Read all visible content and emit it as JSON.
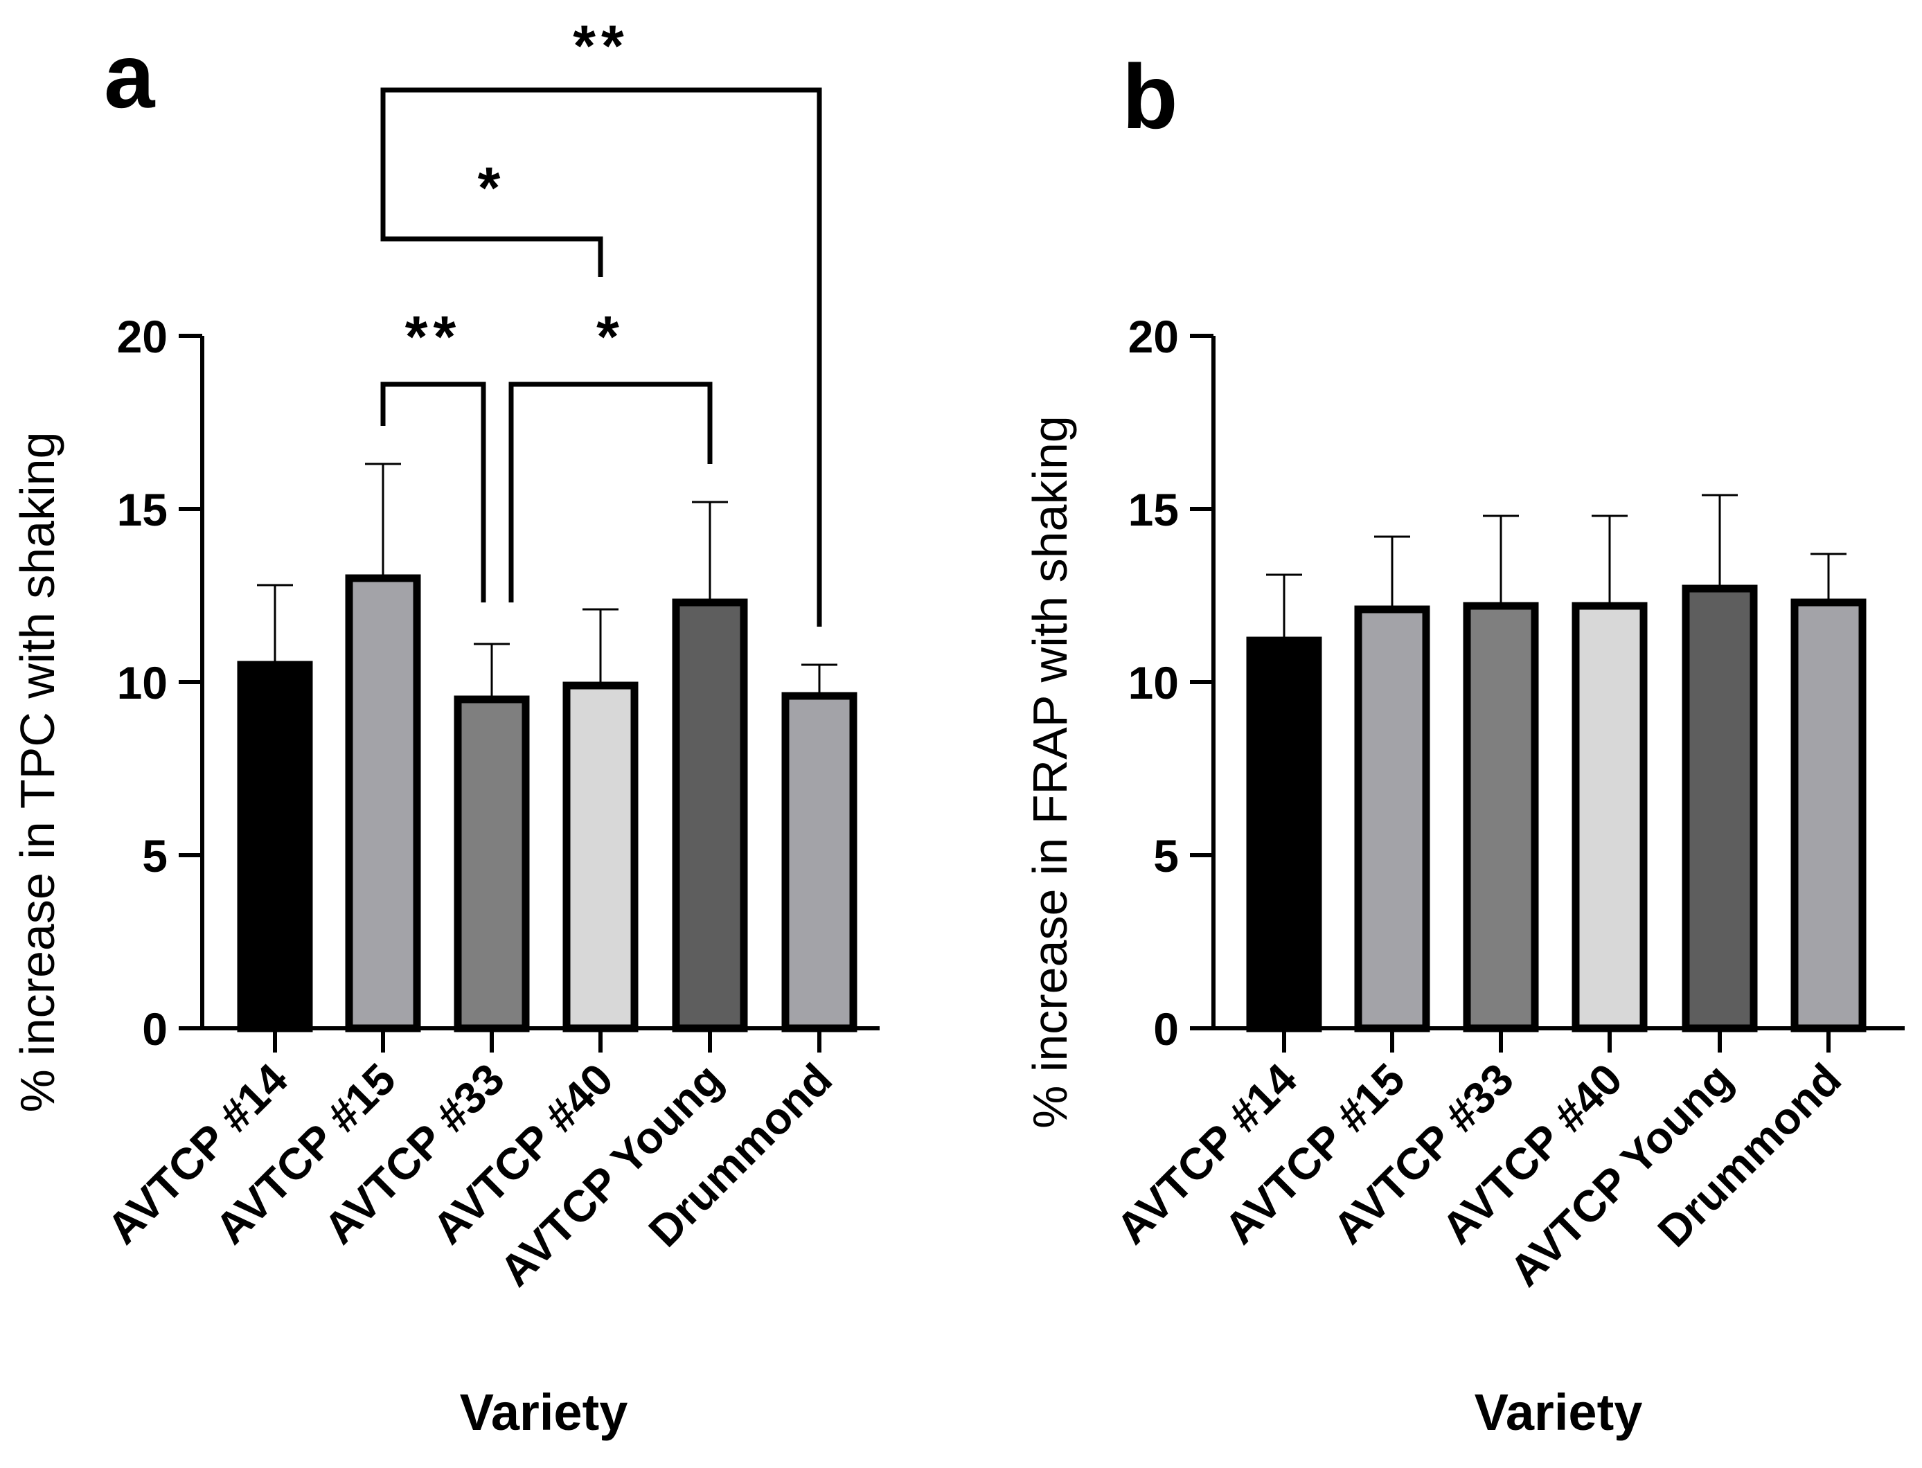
{
  "chart_data": [
    {
      "panel_label": "a",
      "type": "bar",
      "categories": [
        "AVTCP #14",
        "AVTCP #15",
        "AVTCP #33",
        "AVTCP #40",
        "AVTCP Young",
        "Drummond"
      ],
      "values": [
        10.5,
        13.0,
        9.5,
        9.9,
        12.3,
        9.6
      ],
      "errors": [
        2.3,
        3.3,
        1.6,
        2.2,
        2.9,
        0.9
      ],
      "colors": [
        "#000000",
        "#a3a3a8",
        "#7f7f7f",
        "#d8d8d8",
        "#5e5e5e",
        "#a3a3a8"
      ],
      "ylabel": "% increase in TPC with shaking",
      "xlabel": "Variety",
      "ylim": [
        0,
        20
      ],
      "yticks": [
        0,
        5,
        10,
        15,
        20
      ],
      "significance": [
        {
          "from": 1,
          "to": 5,
          "label": "**"
        },
        {
          "from": 1,
          "to": 3,
          "label": "*"
        },
        {
          "from": 1,
          "to": 2,
          "label": "**"
        },
        {
          "from": 2,
          "to": 4,
          "label": "*"
        }
      ]
    },
    {
      "panel_label": "b",
      "type": "bar",
      "categories": [
        "AVTCP #14",
        "AVTCP #15",
        "AVTCP #33",
        "AVTCP #40",
        "AVTCP Young",
        "Drummond"
      ],
      "values": [
        11.2,
        12.1,
        12.2,
        12.2,
        12.7,
        12.3
      ],
      "errors": [
        1.9,
        2.1,
        2.6,
        2.6,
        2.7,
        1.4
      ],
      "colors": [
        "#000000",
        "#a3a3a8",
        "#7f7f7f",
        "#d8d8d8",
        "#5e5e5e",
        "#a3a3a8"
      ],
      "ylabel": "% increase in FRAP with shaking",
      "xlabel": "Variety",
      "ylim": [
        0,
        20
      ],
      "yticks": [
        0,
        5,
        10,
        15,
        20
      ],
      "significance": []
    }
  ]
}
